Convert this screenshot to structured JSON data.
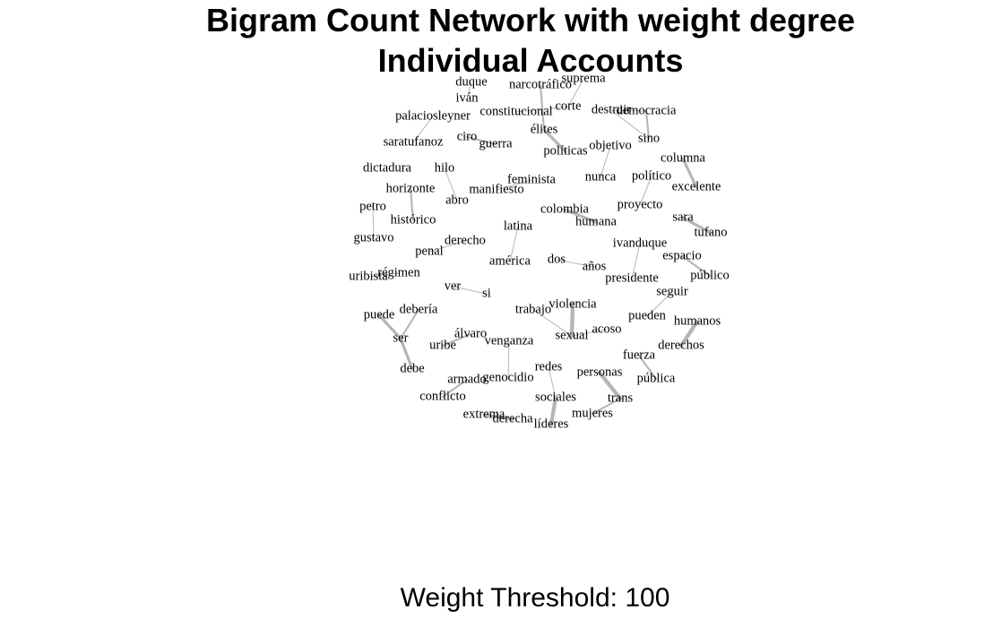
{
  "title": {
    "line1": "Bigram Count Network with weight degree",
    "line2": "Individual Accounts"
  },
  "caption": "Weight Threshold: 100",
  "network": {
    "nodes": [
      "duque",
      "iván",
      "narcotráfico",
      "suprema",
      "constitucional",
      "corte",
      "destruir",
      "democracia",
      "palaciosleyner",
      "saratufanoz",
      "ciro",
      "guerra",
      "élites",
      "políticas",
      "objetivo",
      "sino",
      "columna",
      "excelente",
      "dictadura",
      "horizonte",
      "histórico",
      "hilo",
      "abro",
      "feminista",
      "manifiesto",
      "nunca",
      "político",
      "proyecto",
      "petro",
      "gustavo",
      "colombia",
      "humana",
      "latina",
      "américa",
      "sara",
      "tufano",
      "derecho",
      "penal",
      "ivanduque",
      "presidente",
      "espacio",
      "público",
      "dos",
      "años",
      "uribista",
      "régimen",
      "ver",
      "si",
      "seguir",
      "pueden",
      "humanos",
      "derechos",
      "trabajo",
      "violencia",
      "sexual",
      "acoso",
      "puede",
      "debería",
      "ser",
      "debe",
      "álvaro",
      "uribe",
      "venganza",
      "genocidio",
      "armado",
      "conflicto",
      "redes",
      "sociales",
      "personas",
      "trans",
      "fuerza",
      "pública",
      "mujeres",
      "líderes",
      "extrema",
      "derecha"
    ],
    "edges": [
      {
        "source": "duque",
        "target": "iván",
        "weight": 1
      },
      {
        "source": "narcotráfico",
        "target": "élites",
        "weight": 2
      },
      {
        "source": "suprema",
        "target": "corte",
        "weight": 1
      },
      {
        "source": "corte",
        "target": "constitucional",
        "weight": 1
      },
      {
        "source": "destruir",
        "target": "democracia",
        "weight": 1
      },
      {
        "source": "democracia",
        "target": "sino",
        "weight": 2
      },
      {
        "source": "destruir",
        "target": "sino",
        "weight": 1
      },
      {
        "source": "palaciosleyner",
        "target": "saratufanoz",
        "weight": 1
      },
      {
        "source": "ciro",
        "target": "guerra",
        "weight": 2
      },
      {
        "source": "élites",
        "target": "políticas",
        "weight": 3
      },
      {
        "source": "objetivo",
        "target": "nunca",
        "weight": 1
      },
      {
        "source": "columna",
        "target": "excelente",
        "weight": 3
      },
      {
        "source": "horizonte",
        "target": "histórico",
        "weight": 2
      },
      {
        "source": "hilo",
        "target": "abro",
        "weight": 1
      },
      {
        "source": "feminista",
        "target": "manifiesto",
        "weight": 1
      },
      {
        "source": "político",
        "target": "proyecto",
        "weight": 1
      },
      {
        "source": "petro",
        "target": "gustavo",
        "weight": 1
      },
      {
        "source": "colombia",
        "target": "humana",
        "weight": 3
      },
      {
        "source": "latina",
        "target": "américa",
        "weight": 1
      },
      {
        "source": "sara",
        "target": "tufano",
        "weight": 3
      },
      {
        "source": "derecho",
        "target": "penal",
        "weight": 1
      },
      {
        "source": "ivanduque",
        "target": "presidente",
        "weight": 1
      },
      {
        "source": "espacio",
        "target": "público",
        "weight": 2
      },
      {
        "source": "dos",
        "target": "años",
        "weight": 1
      },
      {
        "source": "uribista",
        "target": "régimen",
        "weight": 1
      },
      {
        "source": "ver",
        "target": "si",
        "weight": 1
      },
      {
        "source": "seguir",
        "target": "pueden",
        "weight": 1
      },
      {
        "source": "humanos",
        "target": "derechos",
        "weight": 4
      },
      {
        "source": "trabajo",
        "target": "sexual",
        "weight": 1
      },
      {
        "source": "violencia",
        "target": "sexual",
        "weight": 4
      },
      {
        "source": "sexual",
        "target": "acoso",
        "weight": 1
      },
      {
        "source": "puede",
        "target": "ser",
        "weight": 3
      },
      {
        "source": "debería",
        "target": "ser",
        "weight": 2
      },
      {
        "source": "ser",
        "target": "debe",
        "weight": 3
      },
      {
        "source": "álvaro",
        "target": "uribe",
        "weight": 2
      },
      {
        "source": "venganza",
        "target": "genocidio",
        "weight": 1
      },
      {
        "source": "armado",
        "target": "conflicto",
        "weight": 2
      },
      {
        "source": "redes",
        "target": "sociales",
        "weight": 1
      },
      {
        "source": "sociales",
        "target": "líderes",
        "weight": 4
      },
      {
        "source": "personas",
        "target": "trans",
        "weight": 4
      },
      {
        "source": "trans",
        "target": "mujeres",
        "weight": 2
      },
      {
        "source": "fuerza",
        "target": "pública",
        "weight": 2
      },
      {
        "source": "extrema",
        "target": "derecha",
        "weight": 3
      }
    ]
  }
}
